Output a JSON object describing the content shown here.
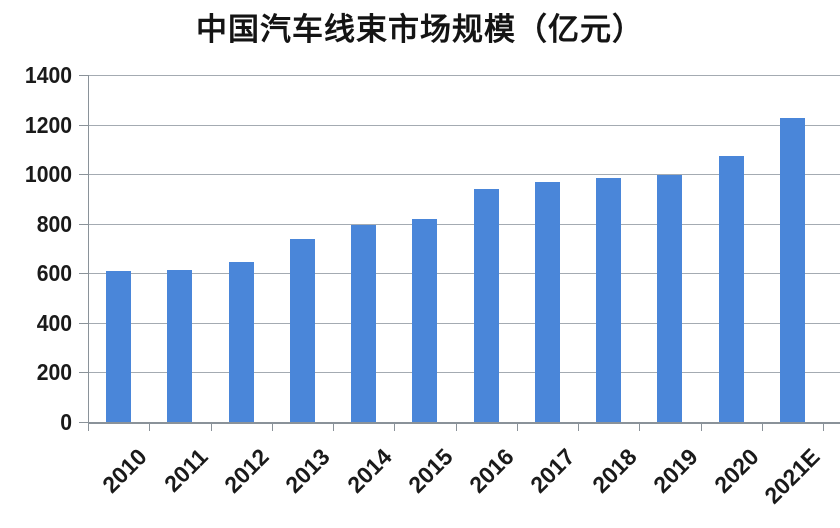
{
  "page": {
    "background": "#ffffff"
  },
  "chart_data": {
    "type": "bar",
    "title": "中国汽车线束市场规模（亿元）",
    "categories": [
      "2010",
      "2011",
      "2012",
      "2013",
      "2014",
      "2015",
      "2016",
      "2017",
      "2018",
      "2019",
      "2020",
      "2021E"
    ],
    "values": [
      610,
      615,
      645,
      740,
      795,
      820,
      940,
      970,
      985,
      995,
      1075,
      1225
    ],
    "xlabel": "",
    "ylabel": "",
    "ylim": [
      0,
      1400
    ],
    "yticks": [
      0,
      200,
      400,
      600,
      800,
      1000,
      1200,
      1400
    ],
    "grid": true,
    "legend": "none",
    "colors": {
      "bar": "#4a86d9",
      "gridline": "#a4abb2",
      "axis": "#8a9299",
      "text": "#1a1a1a"
    }
  }
}
